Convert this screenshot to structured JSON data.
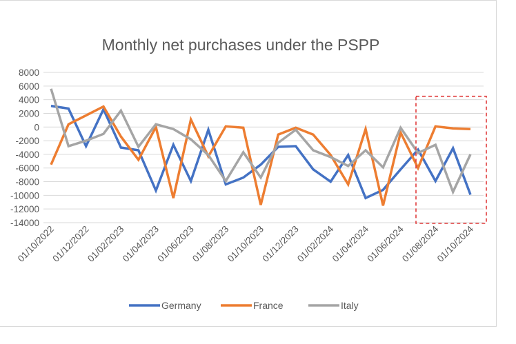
{
  "chart_data": {
    "type": "line",
    "title": "Monthly net purchases under the PSPP",
    "xlabel": "",
    "ylabel": "",
    "ylim": [
      -14000,
      8000
    ],
    "ytick_step": 2000,
    "ytick_labels": [
      "8000",
      "6000",
      "4000",
      "2000",
      "0",
      "-2000",
      "-4000",
      "-6000",
      "-8000",
      "-10000",
      "-12000",
      "-14000"
    ],
    "grid": true,
    "legend_position": "bottom",
    "x": [
      "01/10/2022",
      "01/11/2022",
      "01/12/2022",
      "01/01/2023",
      "01/02/2023",
      "01/03/2023",
      "01/04/2023",
      "01/05/2023",
      "01/06/2023",
      "01/07/2023",
      "01/08/2023",
      "01/09/2023",
      "01/10/2023",
      "01/11/2023",
      "01/12/2023",
      "01/01/2024",
      "01/02/2024",
      "01/03/2024",
      "01/04/2024",
      "01/05/2024",
      "01/06/2024",
      "01/07/2024",
      "01/08/2024",
      "01/09/2024",
      "01/10/2024"
    ],
    "xtick_labels": [
      "01/10/2022",
      "01/12/2022",
      "01/02/2023",
      "01/04/2023",
      "01/06/2023",
      "01/08/2023",
      "01/10/2023",
      "01/12/2023",
      "01/02/2024",
      "01/04/2024",
      "01/06/2024",
      "01/08/2024",
      "01/10/2024"
    ],
    "series": [
      {
        "name": "Germany",
        "color": "#4472C4",
        "values": [
          3100,
          2700,
          -2800,
          2600,
          -3000,
          -3400,
          -9300,
          -2600,
          -7900,
          -400,
          -8400,
          -7400,
          -5500,
          -2900,
          -2800,
          -6200,
          -8000,
          -4100,
          -10400,
          -9200,
          -6200,
          -3300,
          -7900,
          -3100,
          -9900
        ]
      },
      {
        "name": "France",
        "color": "#ED7D31",
        "values": [
          -5500,
          400,
          1700,
          3000,
          -1400,
          -4800,
          0,
          -10400,
          1100,
          -4300,
          100,
          -100,
          -11400,
          -1100,
          -100,
          -1100,
          -4100,
          -8400,
          -300,
          -11500,
          -800,
          -6000,
          100,
          -200,
          -300
        ]
      },
      {
        "name": "Italy",
        "color": "#A5A5A5",
        "values": [
          5600,
          -2800,
          -2000,
          -1000,
          2400,
          -2900,
          400,
          -300,
          -1800,
          -4100,
          -7900,
          -3700,
          -7400,
          -2300,
          -400,
          -3400,
          -4400,
          -5700,
          -3400,
          -5900,
          -100,
          -3800,
          -2600,
          -9500,
          -4000
        ]
      }
    ],
    "annotation": {
      "type": "dashed-rectangle",
      "color": "#E03C3C",
      "x_from": "01/07/2024",
      "x_to": "01/10/2024",
      "y_from": 4500,
      "y_to": -14000
    }
  }
}
